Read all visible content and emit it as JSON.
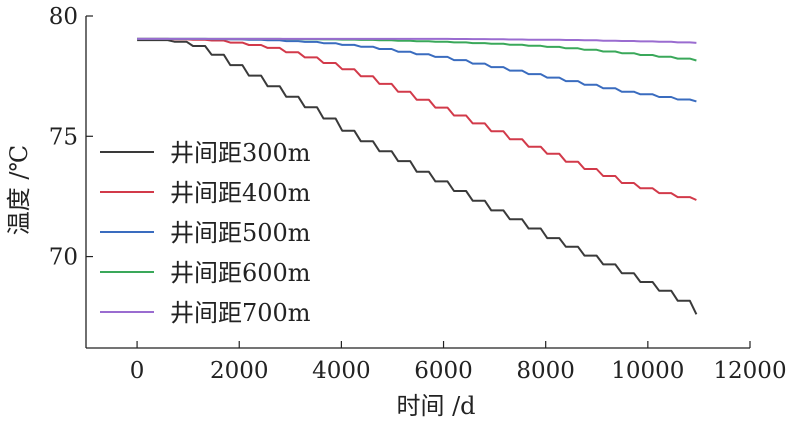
{
  "chart_data": {
    "type": "line",
    "xlabel": "时间 /d",
    "ylabel": "温度 /℃",
    "xlim": [
      -1000,
      12000
    ],
    "ylim": [
      66.2,
      80
    ],
    "xticks": [
      0,
      2000,
      4000,
      6000,
      8000,
      10000,
      12000
    ],
    "yticks": [
      70,
      75,
      80
    ],
    "grid": false,
    "legend_position": "left",
    "step_period_days": 365,
    "series": [
      {
        "name": "井间距300m",
        "color": "#3a3a3a",
        "x": [
          0,
          500,
          1000,
          1500,
          2000,
          2500,
          3000,
          3500,
          4000,
          4500,
          5000,
          5500,
          6000,
          6500,
          7000,
          7500,
          8000,
          8500,
          9000,
          9500,
          10000,
          10500,
          10950
        ],
        "y": [
          79.0,
          79.0,
          78.85,
          78.35,
          77.75,
          77.15,
          76.55,
          75.95,
          75.25,
          74.65,
          74.1,
          73.5,
          72.95,
          72.4,
          71.85,
          71.35,
          70.8,
          70.3,
          69.8,
          69.3,
          68.8,
          68.3,
          67.6
        ]
      },
      {
        "name": "井间距400m",
        "color": "#d23a4a",
        "x": [
          0,
          500,
          1000,
          1500,
          2000,
          2500,
          3000,
          3500,
          4000,
          4500,
          5000,
          5500,
          6000,
          6500,
          7000,
          7500,
          8000,
          8500,
          9000,
          9500,
          10000,
          10500,
          10950
        ],
        "y": [
          79.05,
          79.05,
          79.02,
          78.98,
          78.85,
          78.7,
          78.45,
          78.15,
          77.8,
          77.4,
          76.95,
          76.5,
          76.05,
          75.6,
          75.15,
          74.7,
          74.3,
          73.85,
          73.45,
          73.05,
          72.75,
          72.5,
          72.35
        ]
      },
      {
        "name": "井间距500m",
        "color": "#3a6cbf",
        "x": [
          0,
          500,
          1000,
          1500,
          2000,
          2500,
          3000,
          3500,
          4000,
          4500,
          5000,
          5500,
          6000,
          6500,
          7000,
          7500,
          8000,
          8500,
          9000,
          9500,
          10000,
          10500,
          10950
        ],
        "y": [
          79.05,
          79.05,
          79.05,
          79.04,
          79.02,
          79.0,
          78.95,
          78.9,
          78.8,
          78.7,
          78.55,
          78.4,
          78.25,
          78.05,
          77.85,
          77.65,
          77.45,
          77.25,
          77.05,
          76.85,
          76.7,
          76.55,
          76.45
        ]
      },
      {
        "name": "井间距600m",
        "color": "#3aa85a",
        "x": [
          0,
          500,
          1000,
          1500,
          2000,
          2500,
          3000,
          3500,
          4000,
          4500,
          5000,
          5500,
          6000,
          6500,
          7000,
          7500,
          8000,
          8500,
          9000,
          9500,
          10000,
          10500,
          10950
        ],
        "y": [
          79.05,
          79.05,
          79.05,
          79.05,
          79.05,
          79.05,
          79.04,
          79.03,
          79.02,
          79.0,
          78.98,
          78.95,
          78.92,
          78.88,
          78.84,
          78.78,
          78.72,
          78.64,
          78.55,
          78.45,
          78.35,
          78.25,
          78.15
        ]
      },
      {
        "name": "井间距700m",
        "color": "#9a6cd0",
        "x": [
          0,
          500,
          1000,
          1500,
          2000,
          2500,
          3000,
          3500,
          4000,
          4500,
          5000,
          5500,
          6000,
          6500,
          7000,
          7500,
          8000,
          8500,
          9000,
          9500,
          10000,
          10500,
          10950
        ],
        "y": [
          79.05,
          79.05,
          79.05,
          79.05,
          79.05,
          79.05,
          79.05,
          79.05,
          79.05,
          79.05,
          79.05,
          79.05,
          79.05,
          79.04,
          79.03,
          79.02,
          79.01,
          79.0,
          78.98,
          78.96,
          78.94,
          78.91,
          78.88
        ]
      }
    ]
  }
}
